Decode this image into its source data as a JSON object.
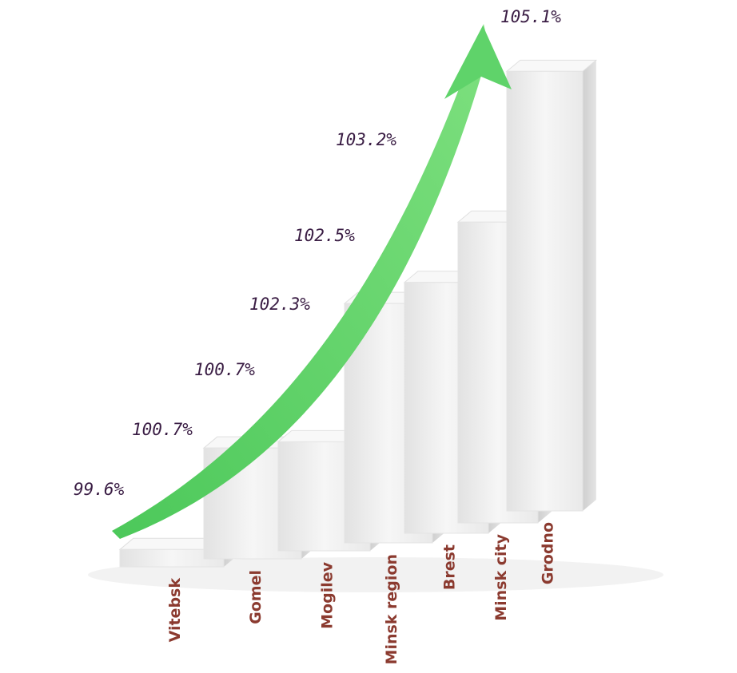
{
  "chart_data": {
    "type": "bar",
    "title": "",
    "xlabel": "",
    "ylabel": "",
    "categories": [
      "Vitebsk",
      "Gomel",
      "Mogilev",
      "Minsk region",
      "Brest",
      "Minsk city",
      "Grodno"
    ],
    "values": [
      99.6,
      100.7,
      100.7,
      102.3,
      102.5,
      103.2,
      105.1
    ],
    "value_labels": [
      "99.6%",
      "100.7%",
      "100.7%",
      "102.3%",
      "102.5%",
      "103.2%",
      "105.1%"
    ],
    "value_unit": "%",
    "ylim": [
      99.4,
      105.3
    ],
    "grid": false,
    "legend": "none",
    "colors": {
      "bar_front": "#eeeeee",
      "bar_side": "#d6d6d6",
      "bar_top": "#f8f8f8",
      "arrow": "#5fd36a",
      "value_text": "#3a1d44",
      "category_text": "#8b3a2f"
    }
  }
}
